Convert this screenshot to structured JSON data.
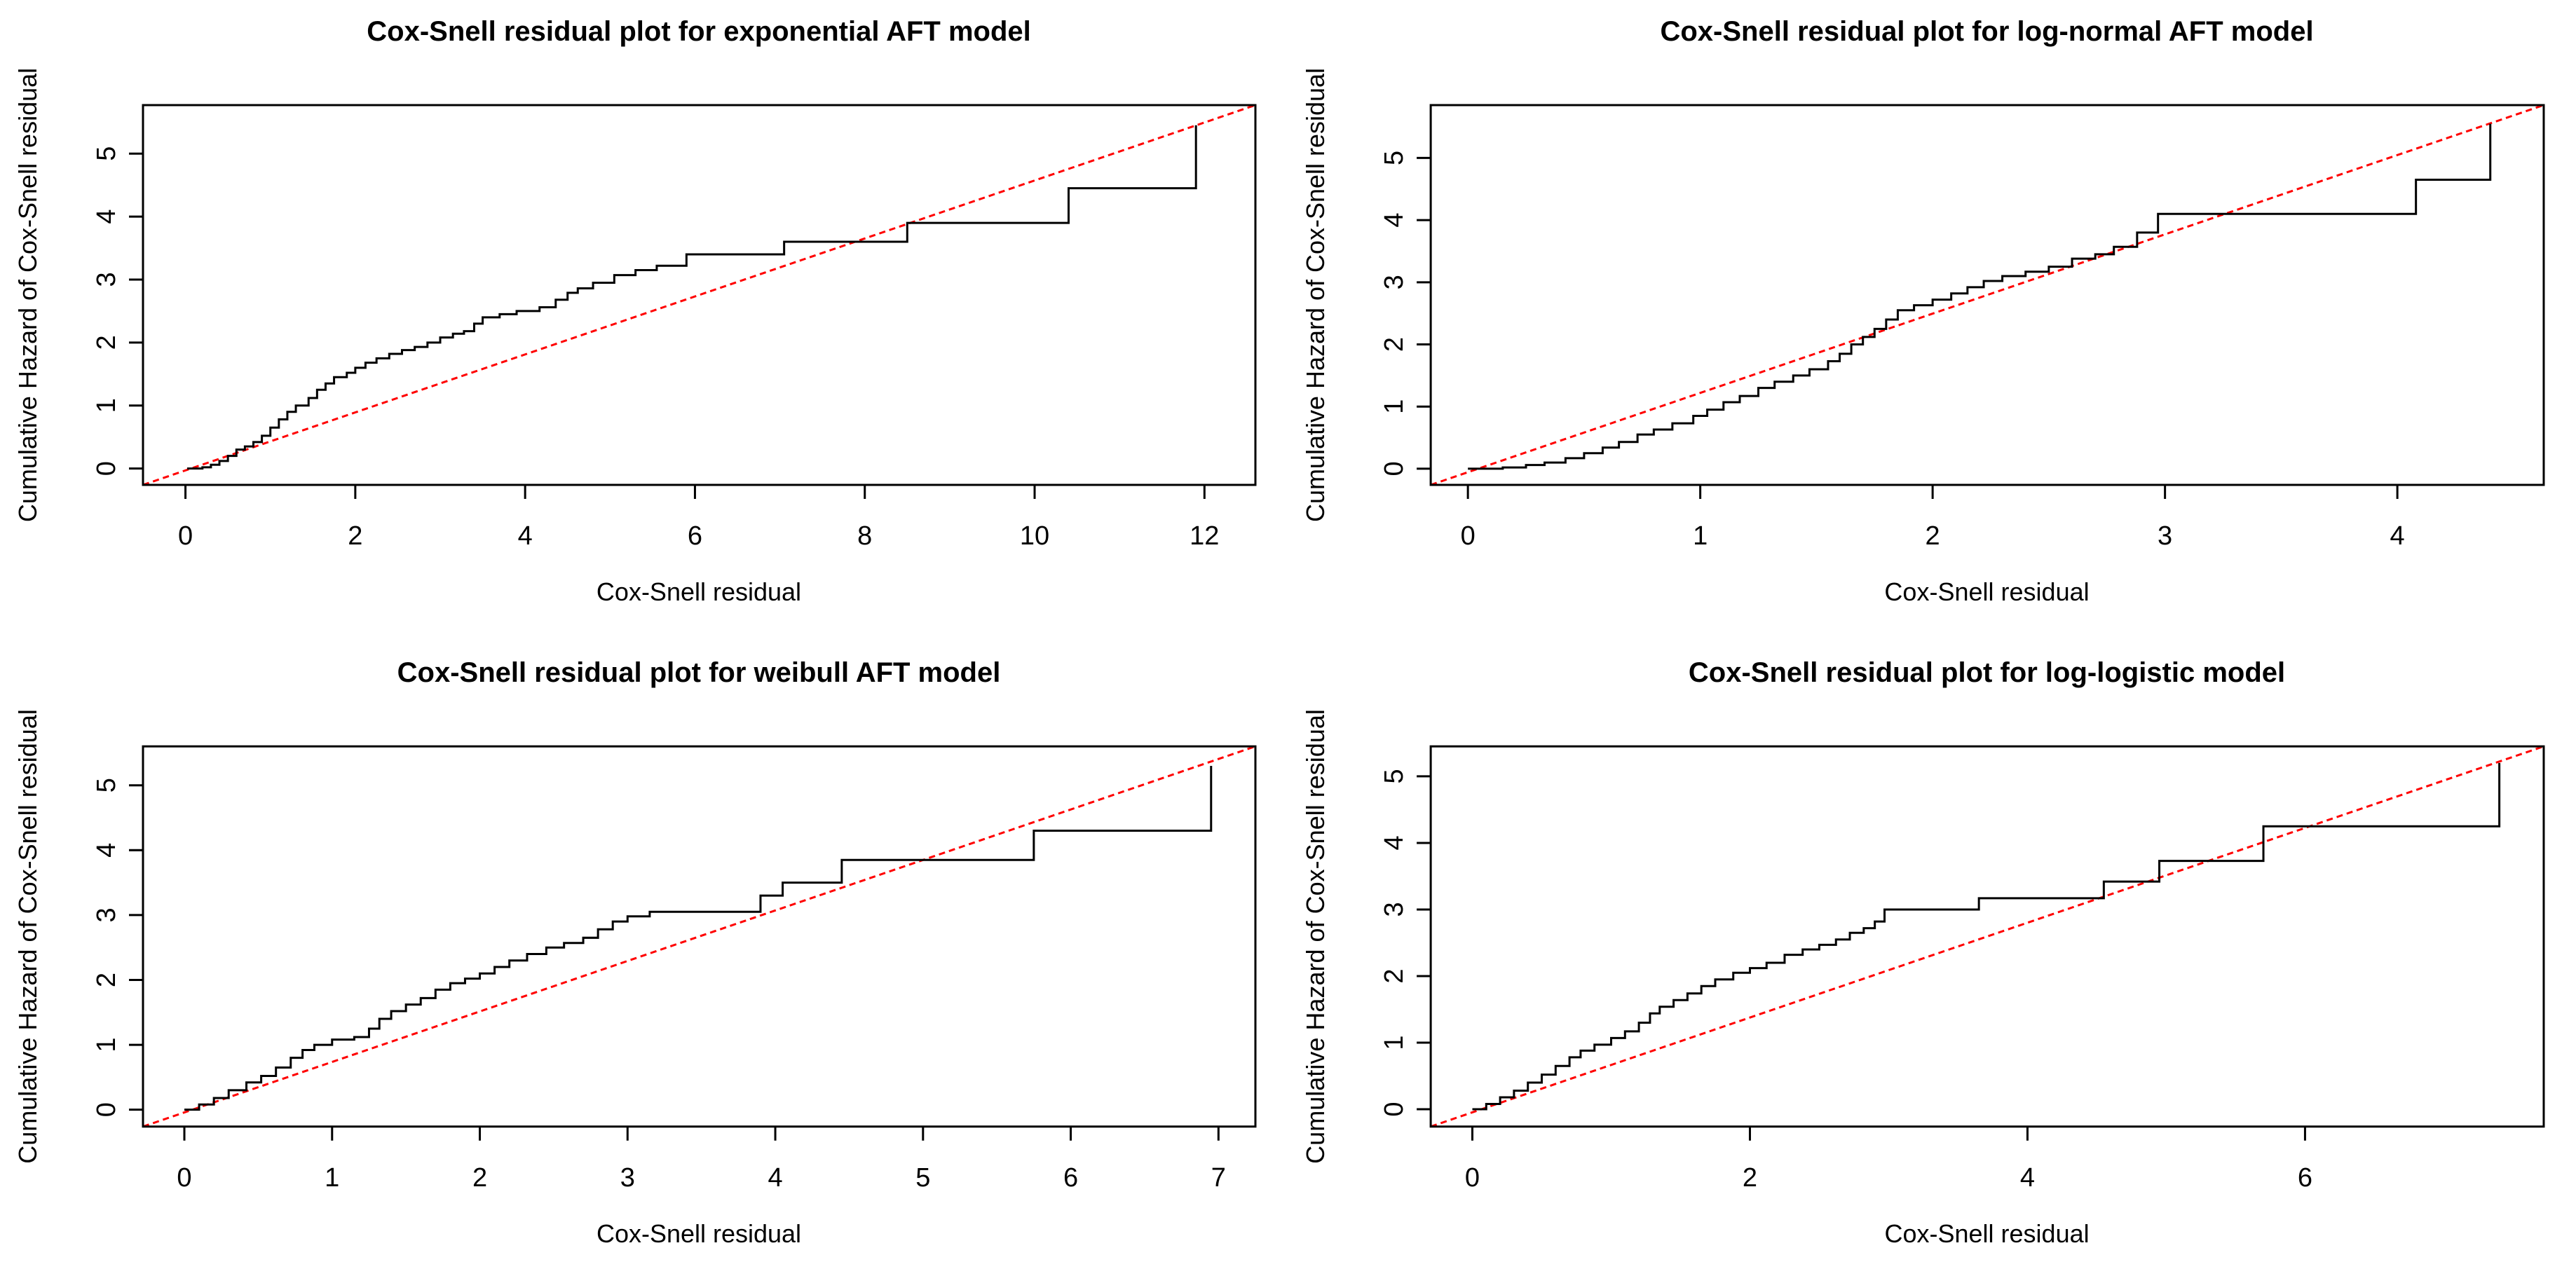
{
  "page": {
    "background": "#ffffff",
    "text_color": "#000000"
  },
  "labels": {
    "x_axis": "Cox-Snell residual",
    "y_axis": "Cumulative Hazard of Cox-Snell residual"
  },
  "colors": {
    "curve": "#000000",
    "reference_line": "#ff0000",
    "axis": "#000000"
  },
  "chart_data": [
    {
      "type": "line",
      "subtype": "step",
      "title": "Cox-Snell residual plot for exponential AFT model",
      "xlabel": "Cox-Snell residual",
      "ylabel": "Cumulative Hazard of Cox-Snell residual",
      "xlim": [
        -0.5,
        12.6
      ],
      "ylim": [
        -0.26,
        5.77
      ],
      "x_ticks": [
        0,
        2,
        4,
        6,
        8,
        10,
        12
      ],
      "y_ticks": [
        0,
        1,
        2,
        3,
        4,
        5
      ],
      "grid": false,
      "legend_position": "none",
      "series": [
        {
          "name": "empirical cumulative hazard",
          "color": "#000000",
          "style": "step",
          "points": [
            [
              0.02,
              0
            ],
            [
              0.2,
              0.02
            ],
            [
              0.3,
              0.06
            ],
            [
              0.4,
              0.12
            ],
            [
              0.5,
              0.2
            ],
            [
              0.6,
              0.3
            ],
            [
              0.7,
              0.35
            ],
            [
              0.8,
              0.42
            ],
            [
              0.9,
              0.52
            ],
            [
              1.0,
              0.65
            ],
            [
              1.1,
              0.78
            ],
            [
              1.2,
              0.9
            ],
            [
              1.3,
              1.0
            ],
            [
              1.45,
              1.12
            ],
            [
              1.55,
              1.25
            ],
            [
              1.65,
              1.35
            ],
            [
              1.75,
              1.45
            ],
            [
              1.9,
              1.52
            ],
            [
              2.0,
              1.6
            ],
            [
              2.12,
              1.68
            ],
            [
              2.25,
              1.75
            ],
            [
              2.4,
              1.82
            ],
            [
              2.55,
              1.88
            ],
            [
              2.7,
              1.93
            ],
            [
              2.85,
              2.0
            ],
            [
              3.0,
              2.08
            ],
            [
              3.15,
              2.14
            ],
            [
              3.28,
              2.18
            ],
            [
              3.4,
              2.3
            ],
            [
              3.5,
              2.4
            ],
            [
              3.7,
              2.45
            ],
            [
              3.9,
              2.5
            ],
            [
              4.17,
              2.56
            ],
            [
              4.36,
              2.68
            ],
            [
              4.5,
              2.79
            ],
            [
              4.62,
              2.86
            ],
            [
              4.8,
              2.95
            ],
            [
              5.05,
              3.07
            ],
            [
              5.3,
              3.15
            ],
            [
              5.55,
              3.22
            ],
            [
              5.9,
              3.4
            ],
            [
              7.05,
              3.6
            ],
            [
              8.5,
              3.9
            ],
            [
              10.4,
              4.45
            ],
            [
              11.9,
              5.45
            ]
          ]
        },
        {
          "name": "reference line",
          "color": "#ff0000",
          "style": "straight",
          "from": [
            -0.5,
            -0.26
          ],
          "to": [
            12.6,
            5.77
          ]
        }
      ]
    },
    {
      "type": "line",
      "subtype": "step",
      "title": "Cox-Snell residual plot for log-normal AFT model",
      "xlabel": "Cox-Snell residual",
      "ylabel": "Cumulative Hazard of Cox-Snell residual",
      "xlim": [
        -0.16,
        4.63
      ],
      "ylim": [
        -0.26,
        5.85
      ],
      "x_ticks": [
        0,
        1,
        2,
        3,
        4
      ],
      "y_ticks": [
        0,
        1,
        2,
        3,
        4,
        5
      ],
      "grid": false,
      "legend_position": "none",
      "series": [
        {
          "name": "empirical cumulative hazard",
          "color": "#000000",
          "style": "step",
          "points": [
            [
              0.0,
              0
            ],
            [
              0.15,
              0.02
            ],
            [
              0.25,
              0.06
            ],
            [
              0.33,
              0.1
            ],
            [
              0.42,
              0.17
            ],
            [
              0.5,
              0.25
            ],
            [
              0.58,
              0.34
            ],
            [
              0.65,
              0.43
            ],
            [
              0.73,
              0.55
            ],
            [
              0.8,
              0.63
            ],
            [
              0.88,
              0.73
            ],
            [
              0.97,
              0.85
            ],
            [
              1.03,
              0.95
            ],
            [
              1.1,
              1.07
            ],
            [
              1.17,
              1.17
            ],
            [
              1.25,
              1.3
            ],
            [
              1.32,
              1.4
            ],
            [
              1.4,
              1.5
            ],
            [
              1.47,
              1.6
            ],
            [
              1.55,
              1.73
            ],
            [
              1.6,
              1.85
            ],
            [
              1.65,
              2.0
            ],
            [
              1.7,
              2.12
            ],
            [
              1.75,
              2.25
            ],
            [
              1.8,
              2.4
            ],
            [
              1.85,
              2.55
            ],
            [
              1.92,
              2.63
            ],
            [
              2.0,
              2.72
            ],
            [
              2.08,
              2.82
            ],
            [
              2.15,
              2.92
            ],
            [
              2.22,
              3.02
            ],
            [
              2.3,
              3.1
            ],
            [
              2.4,
              3.17
            ],
            [
              2.5,
              3.25
            ],
            [
              2.6,
              3.38
            ],
            [
              2.7,
              3.45
            ],
            [
              2.78,
              3.57
            ],
            [
              2.88,
              3.8
            ],
            [
              2.97,
              4.1
            ],
            [
              4.08,
              4.65
            ],
            [
              4.4,
              5.55
            ]
          ]
        },
        {
          "name": "reference line",
          "color": "#ff0000",
          "style": "straight",
          "from": [
            -0.16,
            -0.26
          ],
          "to": [
            4.63,
            5.85
          ]
        }
      ]
    },
    {
      "type": "line",
      "subtype": "step",
      "title": "Cox-Snell residual plot for weibull AFT model",
      "xlabel": "Cox-Snell residual",
      "ylabel": "Cumulative Hazard of Cox-Snell residual",
      "xlim": [
        -0.28,
        7.25
      ],
      "ylim": [
        -0.26,
        5.6
      ],
      "x_ticks": [
        0,
        1,
        2,
        3,
        4,
        5,
        6,
        7
      ],
      "y_ticks": [
        0,
        1,
        2,
        3,
        4,
        5
      ],
      "grid": false,
      "legend_position": "none",
      "series": [
        {
          "name": "empirical cumulative hazard",
          "color": "#000000",
          "style": "step",
          "points": [
            [
              0.0,
              0
            ],
            [
              0.1,
              0.08
            ],
            [
              0.2,
              0.18
            ],
            [
              0.3,
              0.3
            ],
            [
              0.42,
              0.42
            ],
            [
              0.52,
              0.52
            ],
            [
              0.62,
              0.65
            ],
            [
              0.72,
              0.8
            ],
            [
              0.8,
              0.92
            ],
            [
              0.88,
              1.0
            ],
            [
              1.0,
              1.08
            ],
            [
              1.15,
              1.12
            ],
            [
              1.25,
              1.25
            ],
            [
              1.32,
              1.4
            ],
            [
              1.4,
              1.52
            ],
            [
              1.5,
              1.62
            ],
            [
              1.6,
              1.72
            ],
            [
              1.7,
              1.85
            ],
            [
              1.8,
              1.95
            ],
            [
              1.9,
              2.02
            ],
            [
              2.0,
              2.1
            ],
            [
              2.1,
              2.2
            ],
            [
              2.2,
              2.3
            ],
            [
              2.32,
              2.4
            ],
            [
              2.45,
              2.5
            ],
            [
              2.57,
              2.57
            ],
            [
              2.7,
              2.65
            ],
            [
              2.8,
              2.78
            ],
            [
              2.9,
              2.9
            ],
            [
              3.0,
              2.98
            ],
            [
              3.15,
              3.05
            ],
            [
              3.9,
              3.3
            ],
            [
              4.05,
              3.5
            ],
            [
              4.45,
              3.85
            ],
            [
              5.75,
              4.3
            ],
            [
              6.95,
              5.3
            ]
          ]
        },
        {
          "name": "reference line",
          "color": "#ff0000",
          "style": "straight",
          "from": [
            -0.28,
            -0.26
          ],
          "to": [
            7.25,
            5.6
          ]
        }
      ]
    },
    {
      "type": "line",
      "subtype": "step",
      "title": "Cox-Snell residual plot for log-logistic model",
      "xlabel": "Cox-Snell residual",
      "ylabel": "Cumulative Hazard of Cox-Snell residual",
      "xlim": [
        -0.3,
        7.72
      ],
      "ylim": [
        -0.26,
        5.45
      ],
      "x_ticks": [
        0,
        2,
        4,
        6
      ],
      "y_ticks": [
        0,
        1,
        2,
        3,
        4,
        5
      ],
      "grid": false,
      "legend_position": "none",
      "series": [
        {
          "name": "empirical cumulative hazard",
          "color": "#000000",
          "style": "step",
          "points": [
            [
              0.0,
              0
            ],
            [
              0.1,
              0.08
            ],
            [
              0.2,
              0.18
            ],
            [
              0.3,
              0.28
            ],
            [
              0.4,
              0.4
            ],
            [
              0.5,
              0.52
            ],
            [
              0.6,
              0.65
            ],
            [
              0.7,
              0.78
            ],
            [
              0.78,
              0.88
            ],
            [
              0.88,
              0.97
            ],
            [
              1.0,
              1.07
            ],
            [
              1.1,
              1.17
            ],
            [
              1.2,
              1.3
            ],
            [
              1.28,
              1.44
            ],
            [
              1.35,
              1.54
            ],
            [
              1.45,
              1.64
            ],
            [
              1.55,
              1.74
            ],
            [
              1.65,
              1.85
            ],
            [
              1.75,
              1.95
            ],
            [
              1.88,
              2.05
            ],
            [
              2.0,
              2.12
            ],
            [
              2.12,
              2.2
            ],
            [
              2.25,
              2.32
            ],
            [
              2.38,
              2.4
            ],
            [
              2.5,
              2.47
            ],
            [
              2.62,
              2.55
            ],
            [
              2.72,
              2.65
            ],
            [
              2.82,
              2.72
            ],
            [
              2.9,
              2.82
            ],
            [
              2.97,
              3.0
            ],
            [
              3.65,
              3.17
            ],
            [
              4.55,
              3.42
            ],
            [
              4.95,
              3.73
            ],
            [
              5.7,
              4.25
            ],
            [
              7.4,
              5.2
            ]
          ]
        },
        {
          "name": "reference line",
          "color": "#ff0000",
          "style": "straight",
          "from": [
            -0.3,
            -0.26
          ],
          "to": [
            7.72,
            5.45
          ]
        }
      ]
    }
  ]
}
